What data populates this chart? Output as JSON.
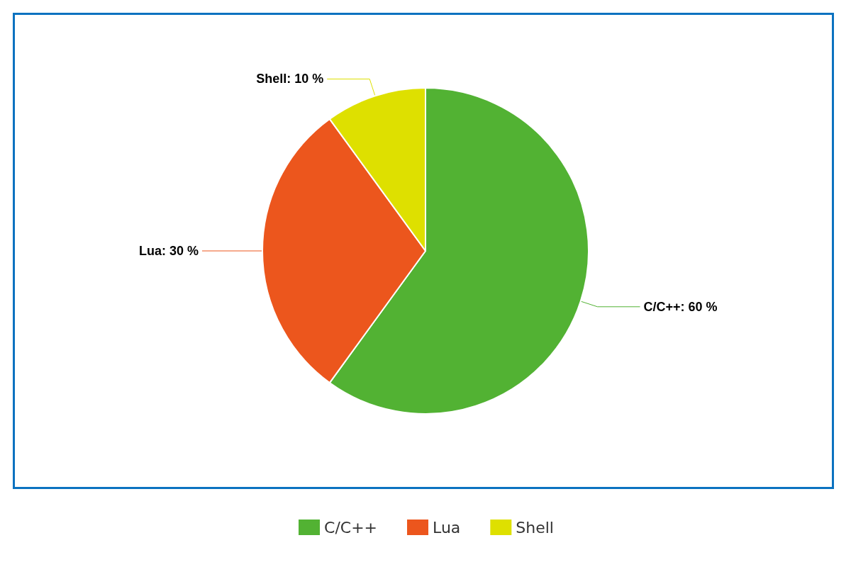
{
  "chart_data": {
    "type": "pie",
    "categories": [
      "C/C++",
      "Lua",
      "Shell"
    ],
    "values": [
      60,
      30,
      10
    ],
    "value_labels": [
      "C/C++: 60 %",
      "Lua: 30 %",
      "Shell: 10 %"
    ],
    "colors": [
      "#52b233",
      "#ec561d",
      "#dee000"
    ],
    "legend": "bottom"
  }
}
